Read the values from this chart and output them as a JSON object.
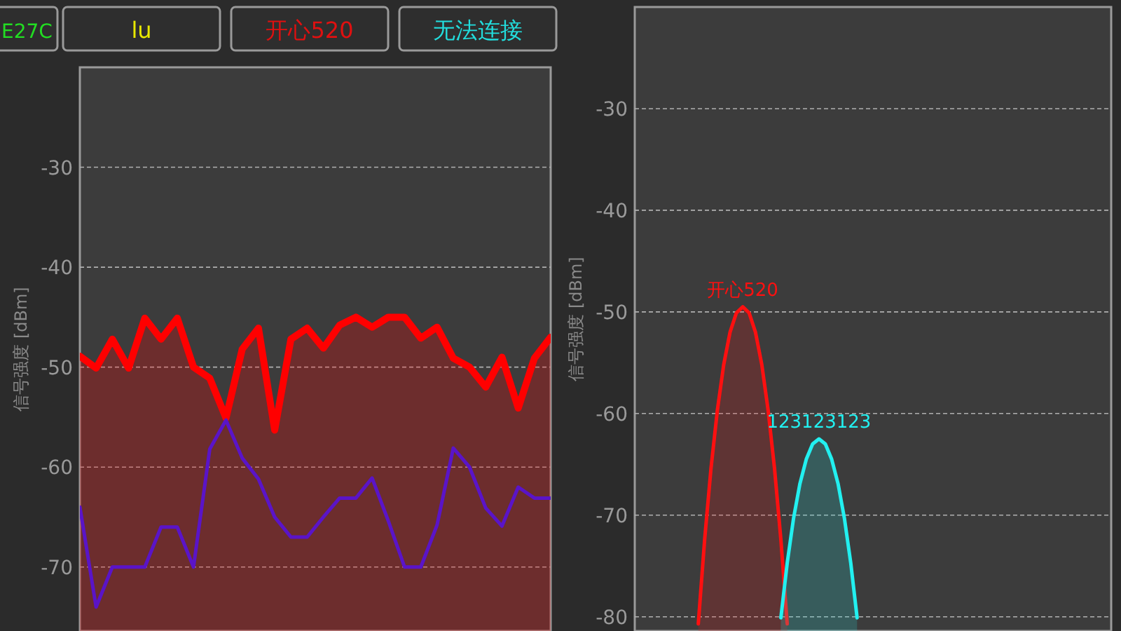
{
  "chart_data": [
    {
      "type": "other",
      "annotations": [
        "E27C",
        "lu",
        "开心520",
        "无法连接"
      ],
      "colors": [
        "#22dd22",
        "#e8e800",
        "#e01010",
        "#22dddd"
      ]
    },
    {
      "type": "line",
      "ylabel": "信号强度 [dBm]",
      "categories": [
        null,
        null,
        null,
        null,
        null,
        null,
        null,
        null,
        null,
        null,
        null,
        null,
        null,
        null,
        null,
        null,
        null,
        null,
        null,
        null,
        null,
        null,
        null,
        null,
        null,
        null,
        null,
        null,
        null,
        null
      ],
      "ylim": [
        -76.4,
        -20
      ],
      "yticks": [
        -30,
        -40,
        -50,
        -60,
        -70
      ],
      "grid": "y",
      "series": [
        {
          "type": "area",
          "color": "#ff0000",
          "values": [
            -48.9,
            -50.1,
            -47.2,
            -50.1,
            -45.1,
            -47.2,
            -45.1,
            -50,
            -51.1,
            -55.1,
            -48.2,
            -46.1,
            -56.3,
            -47.2,
            -46.1,
            -48.1,
            -45.8,
            -45,
            -46,
            -45,
            -45,
            -47.1,
            -46,
            -49.1,
            -50,
            -52,
            -49,
            -54.1,
            -49.1,
            -47
          ]
        },
        {
          "type": "line",
          "color": "#5a14c8",
          "values": [
            -64,
            -74,
            -70,
            -70,
            -70,
            -66,
            -66,
            -70,
            -58.2,
            -55.3,
            -59.1,
            -61.2,
            -65,
            -67,
            -67,
            -65,
            -63.1,
            -63.1,
            -61.1,
            -65.4,
            -70,
            -70,
            -65.8,
            -58.1,
            -60,
            -64.1,
            -65.9,
            -62,
            -63.1,
            -63.1
          ]
        }
      ]
    },
    {
      "type": "area",
      "ylabel": "信号强度 [dBm]",
      "categories": [
        null,
        null,
        null,
        null,
        null,
        null,
        null,
        null,
        null,
        null,
        null,
        null,
        null,
        null,
        null,
        null,
        null,
        null,
        null,
        null,
        null,
        null,
        null,
        null,
        null,
        null,
        null,
        null,
        null,
        null,
        null,
        null,
        null,
        null,
        null,
        null,
        null,
        null,
        null,
        null,
        null,
        null,
        null,
        null,
        null,
        null,
        null,
        null,
        null,
        null,
        null,
        null,
        null,
        null,
        null,
        null,
        null,
        null,
        null,
        null,
        null,
        null,
        null,
        null,
        null,
        null,
        null,
        null,
        null,
        null,
        null,
        null,
        null,
        null,
        null,
        null
      ],
      "ylim": [
        -81.4,
        -20
      ],
      "yticks": [
        -30,
        -40,
        -50,
        -60,
        -70,
        -80
      ],
      "grid": "y",
      "series": [
        {
          "name": "开心520",
          "color": "#ff1010",
          "values": [
            null,
            null,
            null,
            null,
            null,
            null,
            null,
            null,
            null,
            null,
            -80.7,
            -72.4,
            -65.4,
            -59.7,
            -55.2,
            -52.0,
            -50.1,
            -49.5,
            -50.1,
            -52.0,
            -55.2,
            -59.7,
            -65.4,
            -72.4,
            -80.7,
            null,
            null,
            null,
            null,
            null,
            null,
            null,
            null,
            null,
            null,
            null,
            null,
            null,
            null,
            null,
            null,
            null,
            null,
            null,
            null,
            null,
            null,
            null,
            null,
            null,
            null,
            null,
            null,
            null,
            null,
            null,
            null,
            null,
            null,
            null,
            null,
            null,
            null,
            null,
            null,
            null,
            null,
            null,
            null,
            null,
            null,
            null,
            null,
            null,
            null,
            null
          ]
        },
        {
          "name": "123123123",
          "color": "#22f0f0",
          "values": [
            null,
            null,
            null,
            null,
            null,
            null,
            null,
            null,
            null,
            null,
            null,
            null,
            null,
            null,
            null,
            null,
            null,
            null,
            null,
            null,
            null,
            null,
            null,
            -80.1,
            -74.7,
            -70.3,
            -66.9,
            -64.5,
            -63.0,
            -62.5,
            -63.0,
            -64.5,
            -66.9,
            -70.3,
            -74.7,
            -80.1,
            null,
            null,
            null,
            null,
            null,
            null,
            null,
            null,
            null,
            null,
            null,
            null,
            null,
            null,
            null,
            null,
            null,
            null,
            null,
            null,
            null,
            null,
            null,
            null,
            null,
            null,
            null,
            null,
            null,
            null,
            null,
            null,
            null,
            null,
            null,
            null,
            null,
            null,
            null,
            null
          ]
        }
      ]
    }
  ]
}
